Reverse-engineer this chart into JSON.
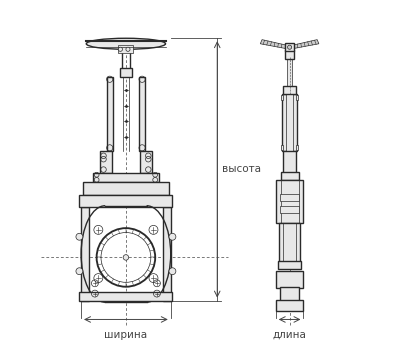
{
  "bg_color": "#ffffff",
  "lc": "#2a2a2a",
  "dlc": "#444444",
  "gray1": "#cccccc",
  "gray2": "#e8e8e8",
  "gray3": "#aaaaaa",
  "lw_main": 1.0,
  "lw_thin": 0.5,
  "lw_thick": 1.5,
  "label_shirina": "ширина",
  "label_dlina": "длина",
  "label_vysota": "высота",
  "fontsize": 7.5,
  "fig_w": 4.0,
  "fig_h": 3.46,
  "dpi": 100,
  "fcx": 0.285,
  "scx": 0.76
}
